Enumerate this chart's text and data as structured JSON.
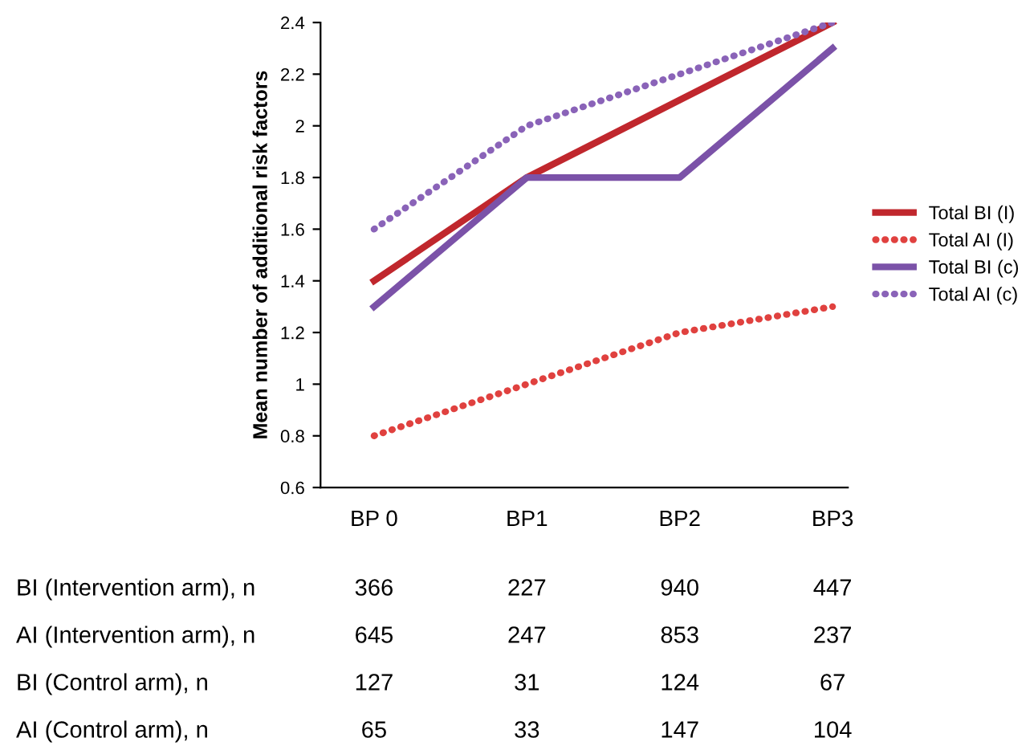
{
  "chart_data": {
    "type": "line",
    "ylabel": "Mean number of additional risk factors",
    "categories": [
      "BP 0",
      "BP1",
      "BP2",
      "BP3"
    ],
    "series": [
      {
        "name": "Total BI (I)",
        "color": "#c0272d",
        "values": [
          1.4,
          1.8,
          2.1,
          2.4
        ],
        "line_style": "solid"
      },
      {
        "name": "Total AI (I)",
        "color": "#e0413f",
        "values": [
          0.8,
          1.0,
          1.2,
          1.3
        ],
        "line_style": "dotted"
      },
      {
        "name": "Total BI (c)",
        "color": "#7b52a8",
        "values": [
          1.3,
          1.8,
          1.8,
          2.3
        ],
        "line_style": "solid"
      },
      {
        "name": "Total AI (c)",
        "color": "#8a63b8",
        "values": [
          1.6,
          2.0,
          2.2,
          2.4
        ],
        "line_style": "dotted"
      }
    ],
    "ylim": [
      0.6,
      2.4
    ],
    "yticks": [
      0.6,
      0.8,
      1,
      1.2,
      1.4,
      1.6,
      1.8,
      2,
      2.2,
      2.4
    ],
    "grid": false,
    "legend": "right",
    "marker": "none",
    "annotations": [
      "BI (Intervention arm), n",
      "366",
      "227",
      "940",
      "447",
      "AI (Intervention arm), n",
      "645",
      "247",
      "853",
      "237",
      "BI (Control arm), n",
      "127",
      "31",
      "124",
      "67",
      "AI (Control arm), n",
      "65",
      "33",
      "147",
      "104"
    ]
  }
}
